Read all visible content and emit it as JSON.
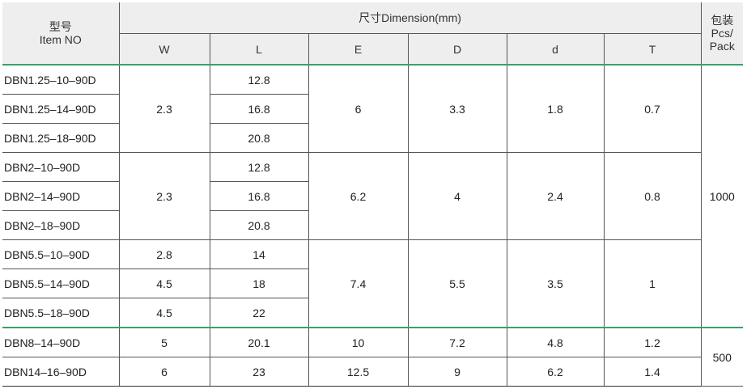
{
  "header": {
    "item": [
      "型号",
      "Item NO"
    ],
    "dimension": "尺寸Dimension(mm)",
    "columns": [
      "W",
      "L",
      "E",
      "D",
      "d",
      "T"
    ],
    "pack": [
      "包装",
      "Pcs/",
      "Pack"
    ]
  },
  "rows": [
    {
      "item": "DBN1.25–10–90D",
      "W": "2.3",
      "L": "12.8",
      "E": "6",
      "D": "3.3",
      "d": "1.8",
      "T": "0.7",
      "pack": "1000"
    },
    {
      "item": "DBN1.25–14–90D",
      "L": "16.8"
    },
    {
      "item": "DBN1.25–18–90D",
      "L": "20.8"
    },
    {
      "item": "DBN2–10–90D",
      "W": "2.3",
      "L": "12.8",
      "E": "6.2",
      "D": "4",
      "d": "2.4",
      "T": "0.8"
    },
    {
      "item": "DBN2–14–90D",
      "L": "16.8"
    },
    {
      "item": "DBN2–18–90D",
      "L": "20.8"
    },
    {
      "item": "DBN5.5–10–90D",
      "W": "2.8",
      "L": "14",
      "E": "7.4",
      "D": "5.5",
      "d": "3.5",
      "T": "1"
    },
    {
      "item": "DBN5.5–14–90D",
      "W": "4.5",
      "L": "18"
    },
    {
      "item": "DBN5.5–18–90D",
      "W": "4.5",
      "L": "22"
    },
    {
      "item": "DBN8–14–90D",
      "W": "5",
      "L": "20.1",
      "E": "10",
      "D": "7.2",
      "d": "4.8",
      "T": "1.2",
      "pack": "500"
    },
    {
      "item": "DBN14–16–90D",
      "W": "6",
      "L": "23",
      "E": "12.5",
      "D": "9",
      "d": "6.2",
      "T": "1.4"
    }
  ]
}
